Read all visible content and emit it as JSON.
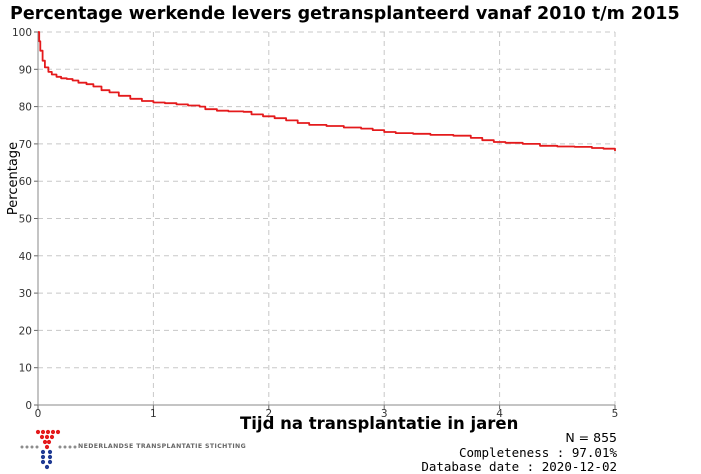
{
  "chart_data": {
    "type": "line",
    "title": "Percentage werkende levers getransplanteerd vanaf 2010 t/m 2015",
    "xlabel": "Tijd na transplantatie in jaren",
    "ylabel": "Percentage",
    "xlim": [
      0,
      5
    ],
    "ylim": [
      0,
      100
    ],
    "x_ticks": [
      "0",
      "1",
      "2",
      "3",
      "4",
      "5"
    ],
    "y_ticks": [
      "0",
      "10",
      "20",
      "30",
      "40",
      "50",
      "60",
      "70",
      "80",
      "90",
      "100"
    ],
    "grid": true,
    "series": [
      {
        "color": "#e41a1c",
        "points": [
          [
            0,
            100
          ],
          [
            0.01,
            97.5
          ],
          [
            0.02,
            95.0
          ],
          [
            0.04,
            92.3
          ],
          [
            0.06,
            90.5
          ],
          [
            0.09,
            89.3
          ],
          [
            0.12,
            88.6
          ],
          [
            0.16,
            88.0
          ],
          [
            0.2,
            87.6
          ],
          [
            0.25,
            87.4
          ],
          [
            0.3,
            87.0
          ],
          [
            0.35,
            86.4
          ],
          [
            0.42,
            86.0
          ],
          [
            0.48,
            85.4
          ],
          [
            0.55,
            84.4
          ],
          [
            0.62,
            83.8
          ],
          [
            0.7,
            82.9
          ],
          [
            0.8,
            82.1
          ],
          [
            0.9,
            81.5
          ],
          [
            1.0,
            81.1
          ],
          [
            1.1,
            80.9
          ],
          [
            1.2,
            80.6
          ],
          [
            1.3,
            80.3
          ],
          [
            1.4,
            80.0
          ],
          [
            1.45,
            79.3
          ],
          [
            1.55,
            78.9
          ],
          [
            1.65,
            78.7
          ],
          [
            1.78,
            78.6
          ],
          [
            1.85,
            77.9
          ],
          [
            1.95,
            77.4
          ],
          [
            2.05,
            76.9
          ],
          [
            2.15,
            76.3
          ],
          [
            2.25,
            75.6
          ],
          [
            2.35,
            75.1
          ],
          [
            2.5,
            74.8
          ],
          [
            2.65,
            74.4
          ],
          [
            2.8,
            74.1
          ],
          [
            2.9,
            73.7
          ],
          [
            3.0,
            73.2
          ],
          [
            3.1,
            72.9
          ],
          [
            3.25,
            72.7
          ],
          [
            3.4,
            72.4
          ],
          [
            3.6,
            72.2
          ],
          [
            3.75,
            71.6
          ],
          [
            3.85,
            71.0
          ],
          [
            3.95,
            70.5
          ],
          [
            4.05,
            70.3
          ],
          [
            4.2,
            70.0
          ],
          [
            4.35,
            69.5
          ],
          [
            4.5,
            69.3
          ],
          [
            4.65,
            69.2
          ],
          [
            4.8,
            68.9
          ],
          [
            4.9,
            68.7
          ],
          [
            5.0,
            68.1
          ]
        ]
      }
    ]
  },
  "footer": {
    "n": "N = 855",
    "completeness": "Completeness : 97.01%",
    "database_date": "Database date : 2020-12-02",
    "logo_text": "NEDERLANDSE TRANSPLANTATIE STICHTING"
  },
  "colors": {
    "line": "#e41a1c",
    "grid": "#c8c8c8",
    "logo_red": "#e41a1c",
    "logo_blue": "#1f3a93",
    "logo_gray": "#8c8c8c"
  }
}
